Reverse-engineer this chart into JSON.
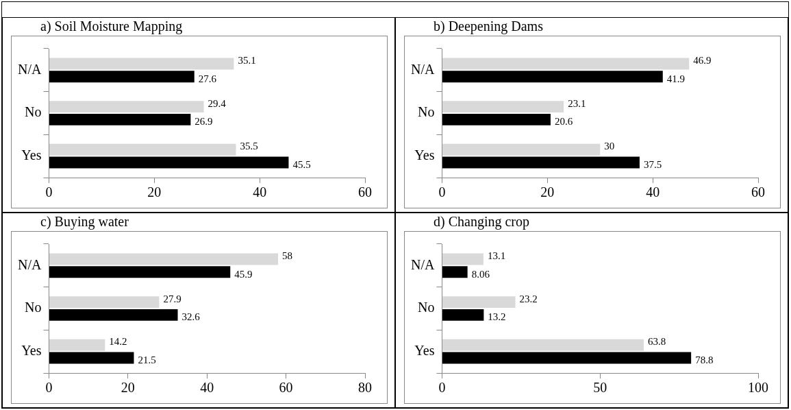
{
  "chart_data": [
    {
      "type": "bar",
      "orientation": "horizontal",
      "title": "a) Soil Moisture Mapping",
      "categories": [
        "N/A",
        "No",
        "Yes"
      ],
      "series": [
        {
          "color": "#d9d9d9",
          "values": [
            35.1,
            29.4,
            35.5
          ]
        },
        {
          "color": "#000000",
          "values": [
            27.6,
            26.9,
            45.5
          ]
        }
      ],
      "xlim": [
        0,
        60
      ],
      "xticks": [
        0,
        20,
        40,
        60
      ],
      "grid": false,
      "data_labels": true
    },
    {
      "type": "bar",
      "orientation": "horizontal",
      "title": "b) Deepening Dams",
      "categories": [
        "N/A",
        "No",
        "Yes"
      ],
      "series": [
        {
          "color": "#d9d9d9",
          "values": [
            46.9,
            23.1,
            30
          ]
        },
        {
          "color": "#000000",
          "values": [
            41.9,
            20.6,
            37.5
          ]
        }
      ],
      "xlim": [
        0,
        60
      ],
      "xticks": [
        0,
        20,
        40,
        60
      ],
      "grid": false,
      "data_labels": true
    },
    {
      "type": "bar",
      "orientation": "horizontal",
      "title": "c) Buying water",
      "categories": [
        "N/A",
        "No",
        "Yes"
      ],
      "series": [
        {
          "color": "#d9d9d9",
          "values": [
            58,
            27.9,
            14.2
          ]
        },
        {
          "color": "#000000",
          "values": [
            45.9,
            32.6,
            21.5
          ]
        }
      ],
      "xlim": [
        0,
        80
      ],
      "xticks": [
        0,
        20,
        40,
        60,
        80
      ],
      "grid": false,
      "data_labels": true
    },
    {
      "type": "bar",
      "orientation": "horizontal",
      "title": "d) Changing crop",
      "categories": [
        "N/A",
        "No",
        "Yes"
      ],
      "series": [
        {
          "color": "#d9d9d9",
          "values": [
            13.1,
            23.2,
            63.8
          ]
        },
        {
          "color": "#000000",
          "values": [
            8.06,
            13.2,
            78.8
          ]
        }
      ],
      "xlim": [
        0,
        100
      ],
      "xticks": [
        0,
        50,
        100
      ],
      "grid": false,
      "data_labels": true
    }
  ]
}
